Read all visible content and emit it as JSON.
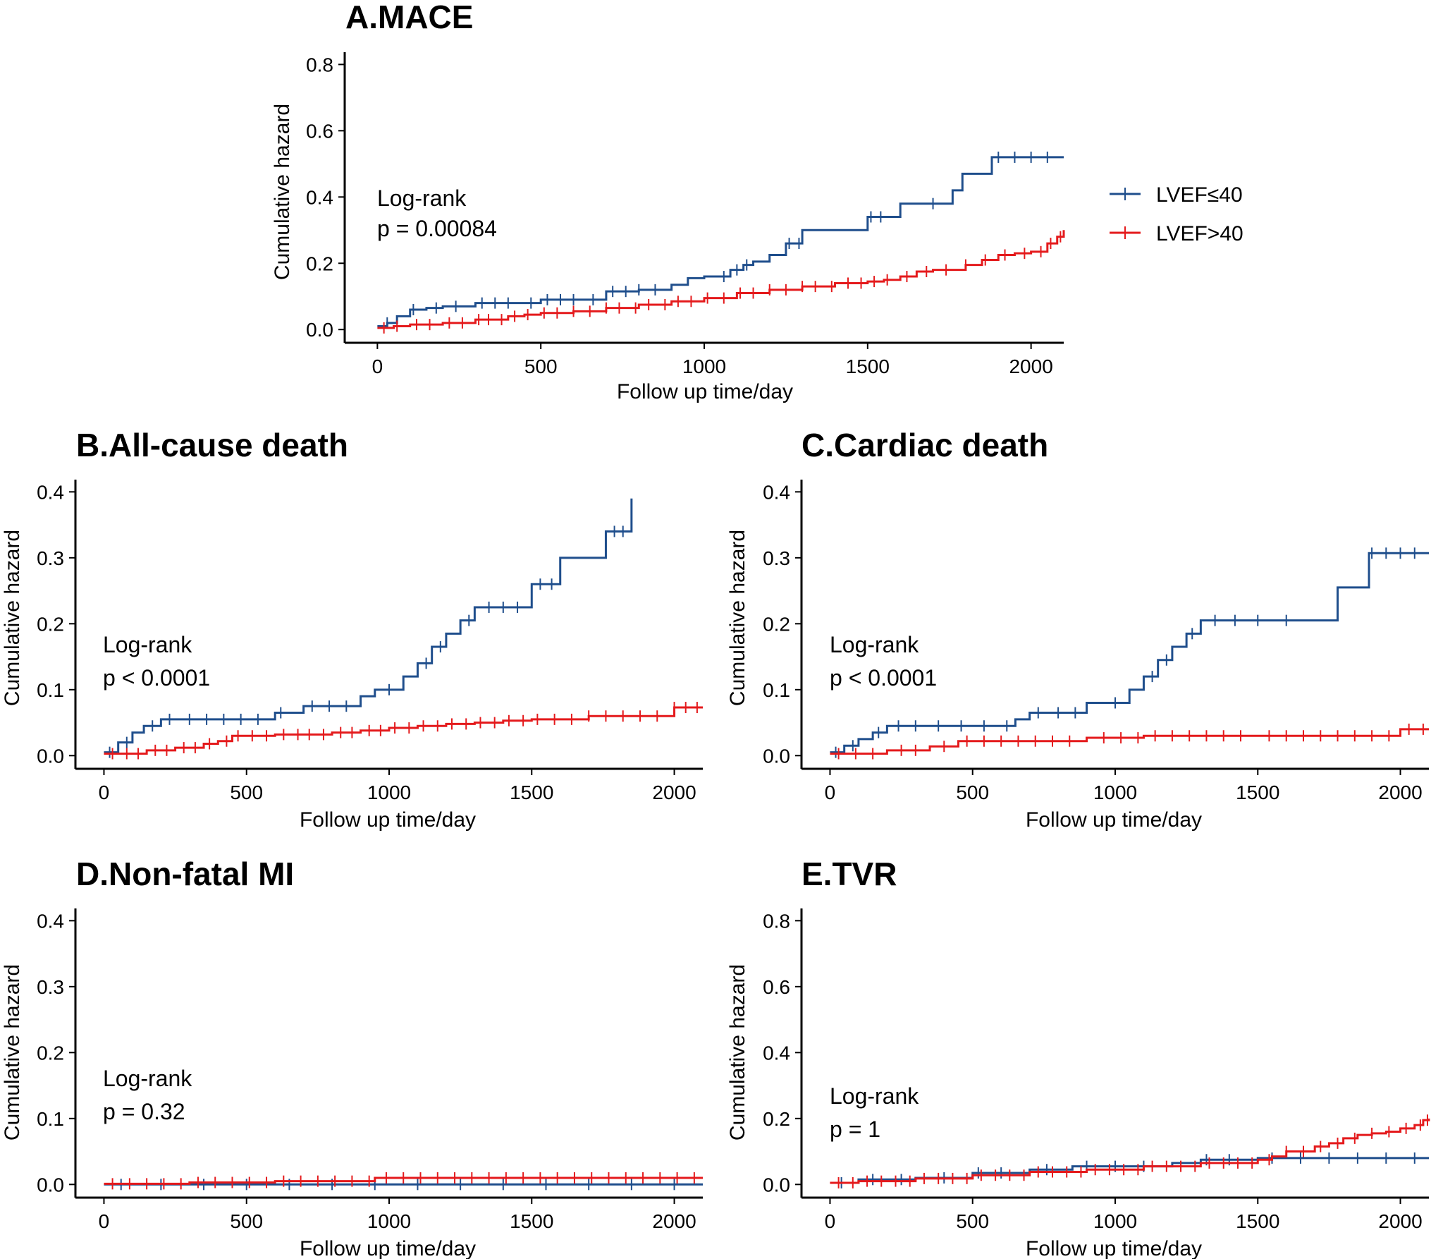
{
  "legend": [
    {
      "label": "LVEF≤40",
      "color": "#1f4e8c"
    },
    {
      "label": "LVEF>40",
      "color": "#e41a1c"
    }
  ],
  "chart_data": [
    {
      "type": "line",
      "title": "A.MACE",
      "xlabel": "Follow up time/day",
      "ylabel": "Cumulative hazard",
      "xlim": [
        -100,
        2100
      ],
      "ylim": [
        -0.04,
        0.82
      ],
      "xticks": [
        0,
        500,
        1000,
        1500,
        2000
      ],
      "yticks": [
        0.0,
        0.2,
        0.4,
        0.6,
        0.8
      ],
      "ytick_labels": [
        "0.0",
        "0.2",
        "0.4",
        "0.6",
        "0.8"
      ],
      "annotation": [
        "Log-rank",
        "p = 0.00084"
      ],
      "series": [
        {
          "name": "LVEF≤40",
          "color": "#1f4e8c",
          "x": [
            0,
            30,
            60,
            100,
            150,
            200,
            300,
            500,
            700,
            800,
            900,
            950,
            1000,
            1080,
            1120,
            1150,
            1200,
            1250,
            1300,
            1500,
            1600,
            1760,
            1790,
            1880,
            2100
          ],
          "y": [
            0.01,
            0.02,
            0.04,
            0.06,
            0.065,
            0.07,
            0.08,
            0.09,
            0.115,
            0.12,
            0.135,
            0.155,
            0.16,
            0.18,
            0.195,
            0.205,
            0.225,
            0.26,
            0.3,
            0.34,
            0.38,
            0.42,
            0.47,
            0.52,
            0.52
          ],
          "censor_x": [
            30,
            110,
            180,
            240,
            320,
            360,
            400,
            470,
            520,
            560,
            600,
            660,
            720,
            760,
            800,
            850,
            1060,
            1100,
            1130,
            1260,
            1290,
            1510,
            1540,
            1700,
            1900,
            1950,
            2000,
            2050
          ]
        },
        {
          "name": "LVEF>40",
          "color": "#e41a1c",
          "x": [
            0,
            50,
            100,
            200,
            300,
            400,
            450,
            500,
            600,
            700,
            800,
            900,
            1000,
            1100,
            1200,
            1300,
            1400,
            1500,
            1550,
            1600,
            1650,
            1700,
            1800,
            1850,
            1900,
            1950,
            2000,
            2050,
            2080,
            2100
          ],
          "y": [
            0.005,
            0.01,
            0.015,
            0.02,
            0.03,
            0.04,
            0.045,
            0.05,
            0.055,
            0.065,
            0.075,
            0.085,
            0.095,
            0.11,
            0.12,
            0.13,
            0.14,
            0.145,
            0.15,
            0.16,
            0.175,
            0.18,
            0.195,
            0.21,
            0.225,
            0.23,
            0.235,
            0.26,
            0.28,
            0.3
          ],
          "censor_x": [
            20,
            60,
            120,
            160,
            220,
            260,
            310,
            340,
            380,
            420,
            460,
            510,
            550,
            600,
            650,
            700,
            740,
            790,
            830,
            880,
            920,
            960,
            1010,
            1060,
            1110,
            1150,
            1200,
            1250,
            1300,
            1340,
            1390,
            1440,
            1480,
            1520,
            1560,
            1620,
            1680,
            1740,
            1800,
            1860,
            1920,
            1980,
            2030,
            2060,
            2090
          ]
        }
      ]
    },
    {
      "type": "line",
      "title": "B.All-cause death",
      "xlabel": "Follow up time/day",
      "ylabel": "Cumulative hazard",
      "xlim": [
        -100,
        2100
      ],
      "ylim": [
        -0.02,
        0.41
      ],
      "xticks": [
        0,
        500,
        1000,
        1500,
        2000
      ],
      "yticks": [
        0.0,
        0.1,
        0.2,
        0.3,
        0.4
      ],
      "ytick_labels": [
        "0.0",
        "0.1",
        "0.2",
        "0.3",
        "0.4"
      ],
      "annotation": [
        "Log-rank",
        "p < 0.0001"
      ],
      "series": [
        {
          "name": "LVEF≤40",
          "color": "#1f4e8c",
          "x": [
            0,
            50,
            100,
            140,
            200,
            600,
            700,
            900,
            950,
            1050,
            1100,
            1150,
            1200,
            1250,
            1300,
            1500,
            1600,
            1760,
            1850
          ],
          "y": [
            0.005,
            0.02,
            0.035,
            0.045,
            0.055,
            0.065,
            0.075,
            0.09,
            0.1,
            0.12,
            0.14,
            0.165,
            0.185,
            0.205,
            0.225,
            0.26,
            0.3,
            0.34,
            0.39
          ],
          "censor_x": [
            20,
            80,
            170,
            230,
            300,
            360,
            420,
            480,
            540,
            620,
            730,
            790,
            850,
            1000,
            1130,
            1180,
            1280,
            1350,
            1400,
            1450,
            1530,
            1570,
            1790,
            1820
          ]
        },
        {
          "name": "LVEF>40",
          "color": "#e41a1c",
          "x": [
            0,
            150,
            250,
            350,
            400,
            450,
            600,
            800,
            900,
            1000,
            1100,
            1200,
            1300,
            1400,
            1500,
            1700,
            2000,
            2100
          ],
          "y": [
            0.003,
            0.008,
            0.012,
            0.018,
            0.022,
            0.03,
            0.032,
            0.035,
            0.038,
            0.042,
            0.045,
            0.048,
            0.05,
            0.053,
            0.055,
            0.06,
            0.073,
            0.073
          ],
          "censor_x": [
            30,
            80,
            120,
            180,
            220,
            280,
            320,
            370,
            430,
            470,
            520,
            570,
            630,
            680,
            720,
            770,
            830,
            870,
            930,
            970,
            1020,
            1070,
            1120,
            1170,
            1220,
            1270,
            1320,
            1370,
            1420,
            1470,
            1520,
            1580,
            1640,
            1700,
            1760,
            1820,
            1880,
            1940,
            2000,
            2040,
            2080
          ]
        }
      ]
    },
    {
      "type": "line",
      "title": "C.Cardiac death",
      "xlabel": "Follow up time/day",
      "ylabel": "Cumulative hazard",
      "xlim": [
        -100,
        2100
      ],
      "ylim": [
        -0.02,
        0.41
      ],
      "xticks": [
        0,
        500,
        1000,
        1500,
        2000
      ],
      "yticks": [
        0.0,
        0.1,
        0.2,
        0.3,
        0.4
      ],
      "ytick_labels": [
        "0.0",
        "0.1",
        "0.2",
        "0.3",
        "0.4"
      ],
      "annotation": [
        "Log-rank",
        "p < 0.0001"
      ],
      "series": [
        {
          "name": "LVEF≤40",
          "color": "#1f4e8c",
          "x": [
            0,
            50,
            100,
            150,
            200,
            650,
            700,
            900,
            1050,
            1100,
            1150,
            1200,
            1250,
            1300,
            1780,
            1890,
            2100
          ],
          "y": [
            0.005,
            0.015,
            0.025,
            0.035,
            0.045,
            0.055,
            0.065,
            0.08,
            0.1,
            0.12,
            0.145,
            0.165,
            0.185,
            0.205,
            0.255,
            0.307,
            0.307
          ],
          "censor_x": [
            20,
            80,
            170,
            240,
            300,
            380,
            460,
            540,
            620,
            730,
            800,
            860,
            1000,
            1130,
            1180,
            1270,
            1350,
            1420,
            1500,
            1600,
            1900,
            1950,
            2000,
            2050
          ]
        },
        {
          "name": "LVEF>40",
          "color": "#e41a1c",
          "x": [
            0,
            200,
            350,
            450,
            900,
            1100,
            1500,
            2000,
            2100
          ],
          "y": [
            0.003,
            0.008,
            0.014,
            0.022,
            0.027,
            0.03,
            0.03,
            0.04,
            0.04
          ],
          "censor_x": [
            30,
            90,
            150,
            250,
            300,
            400,
            480,
            540,
            600,
            660,
            720,
            780,
            840,
            960,
            1020,
            1080,
            1140,
            1200,
            1260,
            1320,
            1380,
            1440,
            1540,
            1600,
            1660,
            1720,
            1780,
            1840,
            1900,
            1960,
            2030,
            2080
          ]
        }
      ]
    },
    {
      "type": "line",
      "title": "D.Non-fatal MI",
      "xlabel": "Follow up time/day",
      "ylabel": "Cumulative hazard",
      "xlim": [
        -100,
        2100
      ],
      "ylim": [
        -0.02,
        0.41
      ],
      "xticks": [
        0,
        500,
        1000,
        1500,
        2000
      ],
      "yticks": [
        0.0,
        0.1,
        0.2,
        0.3,
        0.4
      ],
      "ytick_labels": [
        "0.0",
        "0.1",
        "0.2",
        "0.3",
        "0.4"
      ],
      "annotation": [
        "Log-rank",
        "p = 0.32"
      ],
      "series": [
        {
          "name": "LVEF≤40",
          "color": "#1f4e8c",
          "x": [
            0,
            2100
          ],
          "y": [
            0.0,
            0.0
          ],
          "censor_x": [
            60,
            200,
            350,
            500,
            650,
            800,
            950,
            1100,
            1250,
            1400,
            1550,
            1700,
            1850,
            2000
          ]
        },
        {
          "name": "LVEF>40",
          "color": "#e41a1c",
          "x": [
            0,
            300,
            600,
            950,
            2100
          ],
          "y": [
            0.001,
            0.003,
            0.005,
            0.01,
            0.01
          ],
          "censor_x": [
            30,
            90,
            150,
            210,
            270,
            330,
            390,
            450,
            510,
            570,
            630,
            690,
            750,
            810,
            870,
            930,
            990,
            1050,
            1110,
            1170,
            1230,
            1290,
            1350,
            1410,
            1470,
            1530,
            1590,
            1650,
            1710,
            1770,
            1830,
            1890,
            1950,
            2010,
            2070
          ]
        }
      ]
    },
    {
      "type": "line",
      "title": "E.TVR",
      "xlabel": "Follow up time/day",
      "ylabel": "Cumulative hazard",
      "xlim": [
        -100,
        2100
      ],
      "ylim": [
        -0.04,
        0.82
      ],
      "xticks": [
        0,
        500,
        1000,
        1500,
        2000
      ],
      "yticks": [
        0.0,
        0.2,
        0.4,
        0.6,
        0.8
      ],
      "ytick_labels": [
        "0.0",
        "0.2",
        "0.4",
        "0.6",
        "0.8"
      ],
      "annotation": [
        "Log-rank",
        "p = 1"
      ],
      "series": [
        {
          "name": "LVEF≤40",
          "color": "#1f4e8c",
          "x": [
            0,
            100,
            300,
            500,
            700,
            850,
            1200,
            1300,
            1500,
            2100
          ],
          "y": [
            0.005,
            0.015,
            0.02,
            0.035,
            0.045,
            0.055,
            0.065,
            0.075,
            0.08,
            0.08
          ],
          "censor_x": [
            40,
            150,
            250,
            400,
            520,
            600,
            760,
            900,
            1000,
            1100,
            1320,
            1400,
            1550,
            1650,
            1750,
            1850,
            1950,
            2050
          ]
        },
        {
          "name": "LVEF>40",
          "color": "#e41a1c",
          "x": [
            0,
            100,
            300,
            500,
            700,
            900,
            1100,
            1300,
            1500,
            1550,
            1600,
            1700,
            1750,
            1800,
            1850,
            1900,
            1950,
            2000,
            2050,
            2080,
            2100
          ],
          "y": [
            0.005,
            0.01,
            0.018,
            0.028,
            0.038,
            0.045,
            0.055,
            0.065,
            0.075,
            0.085,
            0.1,
            0.115,
            0.125,
            0.14,
            0.15,
            0.155,
            0.16,
            0.17,
            0.18,
            0.195,
            0.2
          ],
          "censor_x": [
            30,
            80,
            130,
            180,
            230,
            280,
            330,
            380,
            430,
            480,
            530,
            580,
            630,
            680,
            730,
            780,
            830,
            880,
            930,
            980,
            1030,
            1080,
            1130,
            1180,
            1230,
            1280,
            1330,
            1380,
            1430,
            1480,
            1540,
            1600,
            1660,
            1720,
            1780,
            1840,
            1900,
            1960,
            2020,
            2070,
            2095
          ]
        }
      ]
    }
  ]
}
